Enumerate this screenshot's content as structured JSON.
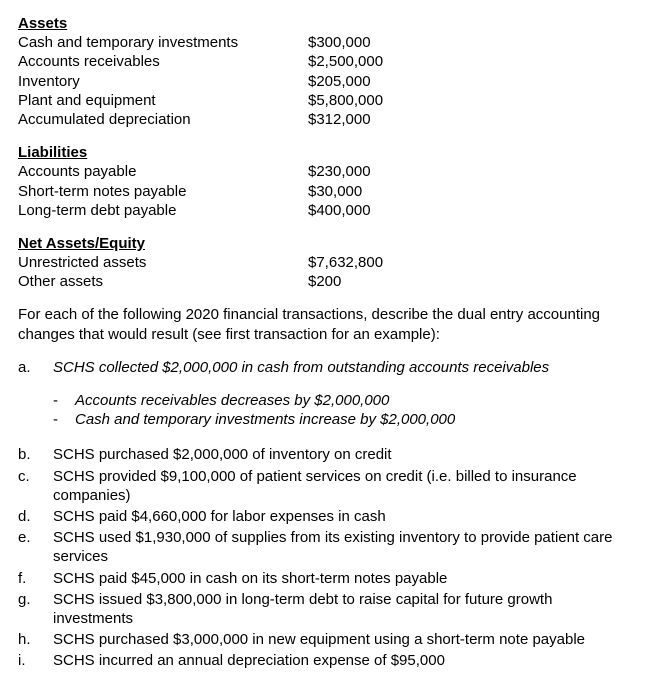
{
  "assets": {
    "heading": "Assets",
    "rows": [
      {
        "label": "Cash and temporary investments",
        "value": "$300,000"
      },
      {
        "label": "Accounts receivables",
        "value": "$2,500,000"
      },
      {
        "label": "Inventory",
        "value": "$205,000"
      },
      {
        "label": "Plant and equipment",
        "value": "$5,800,000"
      },
      {
        "label": "Accumulated depreciation",
        "value": "$312,000"
      }
    ]
  },
  "liabilities": {
    "heading": "Liabilities",
    "rows": [
      {
        "label": "Accounts payable",
        "value": "$230,000"
      },
      {
        "label": "Short-term notes payable",
        "value": "$30,000"
      },
      {
        "label": "Long-term debt payable",
        "value": "$400,000"
      }
    ]
  },
  "equity": {
    "heading": "Net Assets/Equity",
    "rows": [
      {
        "label": "Unrestricted assets",
        "value": "$7,632,800"
      },
      {
        "label": "Other assets",
        "value": "$200"
      }
    ]
  },
  "intro": "For each of the following 2020 financial transactions, describe the dual entry accounting changes that would result (see first transaction for an example):",
  "qa": {
    "letter": "a.",
    "text": "SCHS collected $2,000,000 in cash from outstanding accounts receivables",
    "sub1": "Accounts receivables decreases by $2,000,000",
    "sub2": "Cash and temporary investments increase by $2,000,000"
  },
  "items": [
    {
      "letter": "b.",
      "text": "SCHS purchased $2,000,000 of inventory on credit"
    },
    {
      "letter": "c.",
      "text": "SCHS provided $9,100,000 of patient services on credit (i.e. billed to insurance companies)"
    },
    {
      "letter": "d.",
      "text": "SCHS paid $4,660,000 for labor expenses in cash"
    },
    {
      "letter": "e.",
      "text": "SCHS used $1,930,000 of supplies from its existing inventory to provide patient care services"
    },
    {
      "letter": "f.",
      "text": "SCHS paid $45,000 in cash on its short-term notes payable"
    },
    {
      "letter": "g.",
      "text": "SCHS issued $3,800,000 in long-term debt to raise capital for future growth investments"
    },
    {
      "letter": "h.",
      "text": "SCHS purchased $3,000,000 in new equipment using a short-term note payable"
    },
    {
      "letter": "i.",
      "text": "SCHS incurred an annual depreciation expense of $95,000"
    }
  ]
}
